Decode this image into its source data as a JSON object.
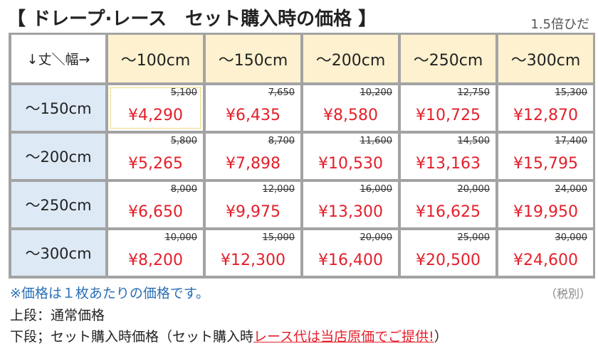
{
  "header": {
    "title": "【 ドレープ·レース　セット購入時の価格 】",
    "subtitle": "1.5倍ひだ"
  },
  "table": {
    "corner": "↓丈＼幅→",
    "columns": [
      "～100cm",
      "～150cm",
      "～200cm",
      "～250cm",
      "～300cm"
    ],
    "rows": [
      {
        "label": "～150cm",
        "cells": [
          {
            "regular": "5,100",
            "set": "¥4,290"
          },
          {
            "regular": "7,650",
            "set": "¥6,435"
          },
          {
            "regular": "10,200",
            "set": "¥8,580"
          },
          {
            "regular": "12,750",
            "set": "¥10,725"
          },
          {
            "regular": "15,300",
            "set": "¥12,870"
          }
        ]
      },
      {
        "label": "～200cm",
        "cells": [
          {
            "regular": "5,800",
            "set": "¥5,265"
          },
          {
            "regular": "8,700",
            "set": "¥7,898"
          },
          {
            "regular": "11,600",
            "set": "¥10,530"
          },
          {
            "regular": "14,500",
            "set": "¥13,163"
          },
          {
            "regular": "17,400",
            "set": "¥15,795"
          }
        ]
      },
      {
        "label": "～250cm",
        "cells": [
          {
            "regular": "8,000",
            "set": "¥6,650"
          },
          {
            "regular": "12,000",
            "set": "¥9,975"
          },
          {
            "regular": "16,000",
            "set": "¥13,300"
          },
          {
            "regular": "20,000",
            "set": "¥16,625"
          },
          {
            "regular": "24,000",
            "set": "¥19,950"
          }
        ]
      },
      {
        "label": "～300cm",
        "cells": [
          {
            "regular": "10,000",
            "set": "¥8,200"
          },
          {
            "regular": "15,000",
            "set": "¥12,300"
          },
          {
            "regular": "20,000",
            "set": "¥16,400"
          },
          {
            "regular": "25,000",
            "set": "¥20,500"
          },
          {
            "regular": "30,000",
            "set": "¥24,600"
          }
        ]
      }
    ]
  },
  "notes": {
    "per_piece": "※価格は１枚あたりの価格です。",
    "tax": "（税別）",
    "upper": "上段：通常価格",
    "lower": "下段；セット購入時価格（セット購入時",
    "lower_highlight": "レース代は当店原価でご提供!",
    "lower_end": "）"
  }
}
